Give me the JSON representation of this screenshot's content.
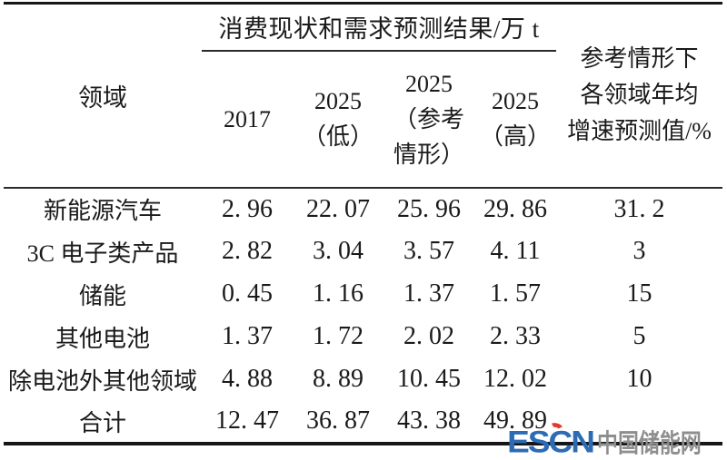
{
  "table": {
    "spanner_header": "消费现状和需求预测结果/万 t",
    "corner_header": "领域",
    "growth_header": "参考情形下\n各领域年均\n增速预测值/%",
    "year_headers": [
      "2017",
      "2025\n（低）",
      "2025\n（参考\n情形）",
      "2025\n（高）"
    ],
    "rows": [
      {
        "label": "新能源汽车",
        "values": [
          "2. 96",
          "22. 07",
          "25. 96",
          "29. 86",
          "31. 2"
        ]
      },
      {
        "label": "3C 电子类产品",
        "values": [
          "2. 82",
          "3. 04",
          "3. 57",
          "4. 11",
          "3"
        ]
      },
      {
        "label": "储能",
        "values": [
          "0. 45",
          "1. 16",
          "1. 37",
          "1. 57",
          "15"
        ]
      },
      {
        "label": "其他电池",
        "values": [
          "1. 37",
          "1. 72",
          "2. 02",
          "2. 33",
          "5"
        ]
      },
      {
        "label": "除电池外其他领域",
        "values": [
          "4. 88",
          "8. 89",
          "10. 45",
          "12. 02",
          "10"
        ]
      },
      {
        "label": "合计",
        "values": [
          "12. 47",
          "36. 87",
          "43. 38",
          "49. 89",
          ""
        ]
      }
    ]
  },
  "watermark": {
    "logo_text": "ESCN",
    "site_name": "中国储能网",
    "logo_color": "#2d6bb4",
    "accent_color": "#e03c2e",
    "site_color": "#8e8e8e"
  },
  "colors": {
    "text": "#1a1a1a",
    "rule": "#161616",
    "background": "#ffffff"
  },
  "chart_data": {
    "type": "table",
    "title": "消费现状和需求预测结果/万 t",
    "columns": [
      "领域",
      "2017",
      "2025（低）",
      "2025（参考情形）",
      "2025（高）",
      "参考情形下各领域年均增速预测值/%"
    ],
    "rows": [
      [
        "新能源汽车",
        2.96,
        22.07,
        25.96,
        29.86,
        31.2
      ],
      [
        "3C 电子类产品",
        2.82,
        3.04,
        3.57,
        4.11,
        3
      ],
      [
        "储能",
        0.45,
        1.16,
        1.37,
        1.57,
        15
      ],
      [
        "其他电池",
        1.37,
        1.72,
        2.02,
        2.33,
        5
      ],
      [
        "除电池外其他领域",
        4.88,
        8.89,
        10.45,
        12.02,
        10
      ],
      [
        "合计",
        12.47,
        36.87,
        43.38,
        49.89,
        null
      ]
    ]
  }
}
